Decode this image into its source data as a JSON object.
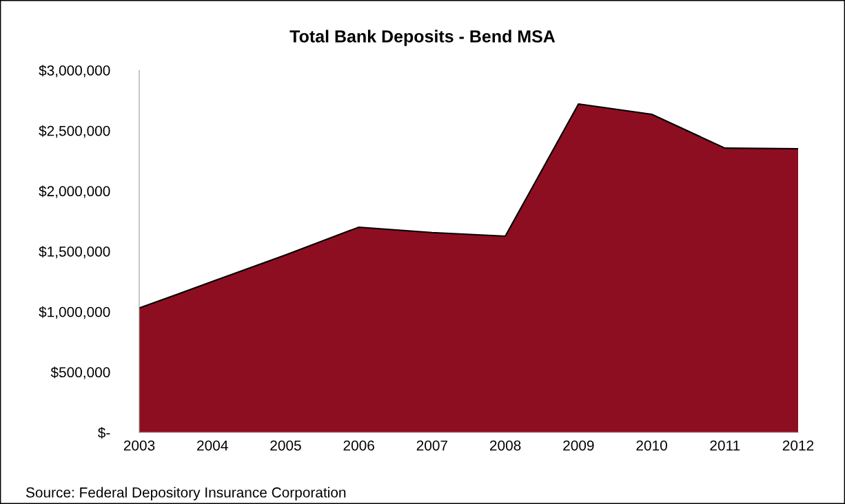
{
  "chart_data": {
    "type": "area",
    "title": "Total Bank Deposits - Bend MSA",
    "categories": [
      "2003",
      "2004",
      "2005",
      "2006",
      "2007",
      "2008",
      "2009",
      "2010",
      "2011",
      "2012"
    ],
    "series": [
      {
        "color": "#8e0e21",
        "values": [
          1030000,
          1250000,
          1470000,
          1700000,
          1655000,
          1625000,
          2720000,
          2635000,
          2355000,
          2350000
        ]
      }
    ],
    "ylim": [
      0,
      3000000
    ],
    "yticks": [
      {
        "value": 0,
        "label": "$-"
      },
      {
        "value": 500000,
        "label": "$500,000"
      },
      {
        "value": 1000000,
        "label": "$1,000,000"
      },
      {
        "value": 1500000,
        "label": "$1,500,000"
      },
      {
        "value": 2000000,
        "label": "$2,000,000"
      },
      {
        "value": 2500000,
        "label": "$2,500,000"
      },
      {
        "value": 3000000,
        "label": "$3,000,000"
      }
    ],
    "grid": false,
    "annotations": [
      "Source: Federal Depository Insurance Corporation"
    ]
  }
}
